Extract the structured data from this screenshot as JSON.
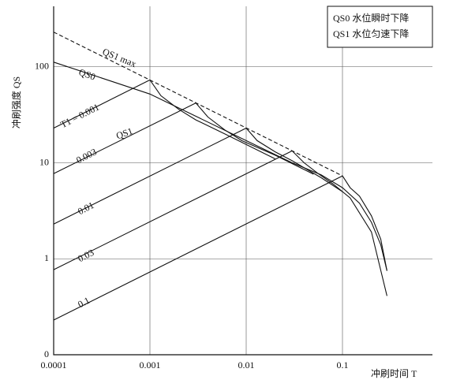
{
  "chart_data": {
    "type": "line",
    "xscale": "log",
    "yscale": "log",
    "grid": true,
    "x_label": "冲刷时间 T",
    "y_label": "冲刷强度 QS",
    "legend": [
      "QS0 水位瞬时下降",
      "QS1 水位匀速下降"
    ],
    "curve_label": "QS1",
    "xlim": [
      0.0001,
      0.86
    ],
    "ylim": [
      0.1,
      427
    ],
    "xticks": [
      0.0001,
      0.001,
      0.01,
      0.1
    ],
    "yticks": [
      {
        "value": 0.1,
        "label": "0"
      },
      1,
      10,
      100
    ],
    "series": [
      {
        "name": "QS1 max",
        "color": "#111",
        "dash": true,
        "x": [
          0.0001,
          0.1
        ],
        "values": [
          230,
          7.3
        ]
      },
      {
        "name": "QS0",
        "color": "#111",
        "x": [
          0.0001,
          0.001,
          0.01,
          0.03,
          0.06,
          0.1,
          0.15,
          0.2,
          0.25,
          0.29
        ],
        "values": [
          112,
          52,
          17,
          10,
          7.5,
          5.5,
          3.8,
          2.4,
          1.4,
          0.75
        ]
      },
      {
        "name": "T1 = 0.001",
        "color": "#111",
        "x": [
          0.0001,
          0.001
        ],
        "values": [
          23,
          73
        ]
      },
      {
        "name": "0.003",
        "color": "#111",
        "x": [
          0.0001,
          0.003
        ],
        "values": [
          7.7,
          42
        ]
      },
      {
        "name": "0.01",
        "color": "#111",
        "x": [
          0.0001,
          0.01
        ],
        "values": [
          2.3,
          23
        ]
      },
      {
        "name": "0.03",
        "color": "#111",
        "x": [
          0.0001,
          0.03
        ],
        "values": [
          0.77,
          13.3
        ]
      },
      {
        "name": "0.1",
        "color": "#111",
        "x": [
          0.0001,
          0.1
        ],
        "values": [
          0.23,
          7.3
        ]
      },
      {
        "color": "#111",
        "x": [
          0.001,
          0.0013,
          0.002,
          0.003,
          0.006,
          0.02
        ],
        "values": [
          73,
          50,
          36,
          28,
          20,
          11
        ]
      },
      {
        "color": "#111",
        "x": [
          0.003,
          0.004,
          0.006,
          0.009,
          0.02,
          0.05
        ],
        "values": [
          42,
          30,
          22,
          17,
          12,
          7.6
        ]
      },
      {
        "color": "#111",
        "x": [
          0.01,
          0.013,
          0.02,
          0.03,
          0.06,
          0.1
        ],
        "values": [
          23,
          17,
          13,
          10.5,
          7,
          5
        ]
      },
      {
        "color": "#111",
        "x": [
          0.03,
          0.04,
          0.055,
          0.08,
          0.12,
          0.2,
          0.29
        ],
        "values": [
          13.3,
          10,
          7.8,
          6,
          4.3,
          1.9,
          0.41
        ]
      },
      {
        "color": "#111",
        "x": [
          0.1,
          0.12,
          0.15,
          0.2,
          0.25,
          0.29
        ],
        "values": [
          7.3,
          5.5,
          4.5,
          2.8,
          1.6,
          0.75
        ]
      }
    ]
  }
}
